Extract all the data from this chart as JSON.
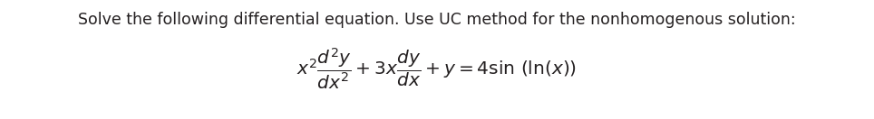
{
  "instruction_text": "Solve the following differential equation. Use UC method for the nonhomogenous solution:",
  "equation": "$x^2\\dfrac{d^2y}{dx^2} + 3x\\dfrac{dy}{dx} + y = 4\\sin\\,(\\ln(x))$",
  "background_color": "#ffffff",
  "text_color": "#231f20",
  "instruction_fontsize": 12.5,
  "equation_fontsize": 14.5,
  "fig_width": 9.64,
  "fig_height": 1.32,
  "dpi": 100
}
